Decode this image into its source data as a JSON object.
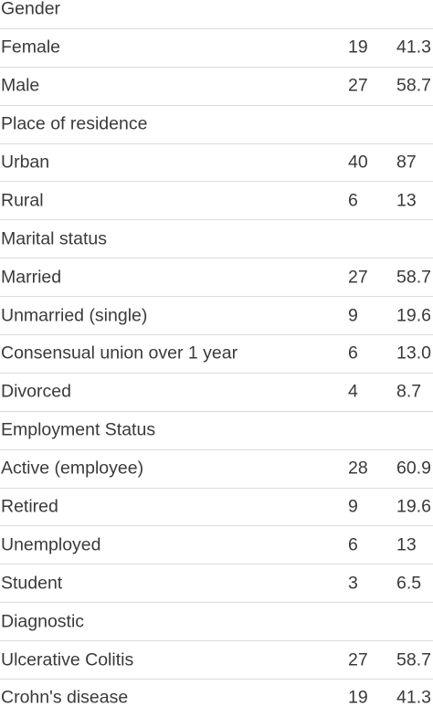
{
  "table": {
    "rows": [
      {
        "label": "Gender",
        "n": "",
        "pct": ""
      },
      {
        "label": "Female",
        "n": "19",
        "pct": "41.3"
      },
      {
        "label": "Male",
        "n": "27",
        "pct": "58.7"
      },
      {
        "label": "Place of residence",
        "n": "",
        "pct": ""
      },
      {
        "label": "Urban",
        "n": "40",
        "pct": "87"
      },
      {
        "label": "Rural",
        "n": "6",
        "pct": "13"
      },
      {
        "label": "Marital status",
        "n": "",
        "pct": ""
      },
      {
        "label": "Married",
        "n": "27",
        "pct": "58.7"
      },
      {
        "label": "Unmarried (single)",
        "n": "9",
        "pct": "19.6"
      },
      {
        "label": "Consensual union over 1 year",
        "n": "6",
        "pct": "13.0"
      },
      {
        "label": "Divorced",
        "n": "4",
        "pct": "8.7"
      },
      {
        "label": "Employment Status",
        "n": "",
        "pct": ""
      },
      {
        "label": "Active (employee)",
        "n": "28",
        "pct": "60.9"
      },
      {
        "label": "Retired",
        "n": "9",
        "pct": "19.6"
      },
      {
        "label": "Unemployed",
        "n": "6",
        "pct": "13"
      },
      {
        "label": "Student",
        "n": "3",
        "pct": "6.5"
      },
      {
        "label": "Diagnostic",
        "n": "",
        "pct": ""
      },
      {
        "label": "Ulcerative Colitis",
        "n": "27",
        "pct": "58.7"
      },
      {
        "label": "Crohn's disease",
        "n": "19",
        "pct": "41.3"
      }
    ]
  }
}
